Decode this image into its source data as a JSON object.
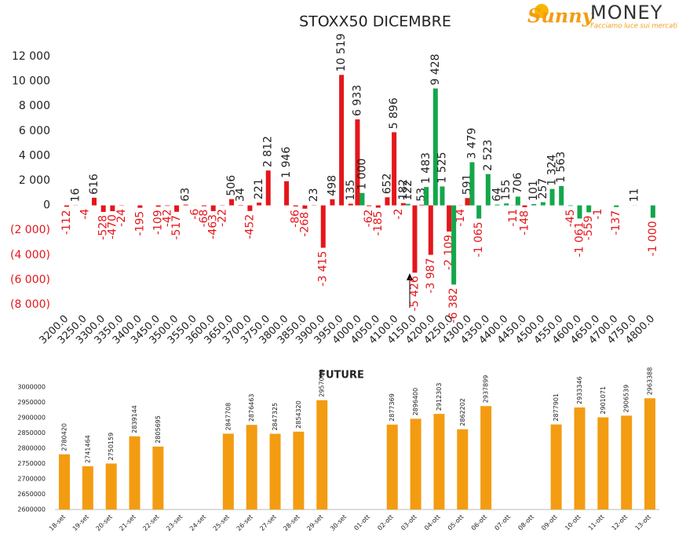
{
  "logo": {
    "brand": "Sunny",
    "brand2": "MONEY",
    "tagline": "Facciamo luce sui mercati"
  },
  "chart_data": [
    {
      "type": "bar",
      "title": "STOXX50 DICEMBRE",
      "categories": [
        "3200.0",
        null,
        "3250.0",
        null,
        "3300.0",
        null,
        "3350.0",
        null,
        "3400.0",
        null,
        "3450.0",
        null,
        "3500.0",
        null,
        "3550.0",
        null,
        "3600.0",
        null,
        "3650.0",
        null,
        "3700.0",
        null,
        "3750.0",
        null,
        "3800.0",
        null,
        "3850.0",
        null,
        "3900.0",
        null,
        "3950.0",
        null,
        "4000.0",
        null,
        "4050.0",
        null,
        "4100.0",
        null,
        "4150.0",
        null,
        "4200.0",
        null,
        "4250.0",
        null,
        "4300.0",
        null,
        "4350.0",
        null,
        "4400.0",
        null,
        "4450.0",
        null,
        "4500.0",
        null,
        "4550.0",
        null,
        "4600.0",
        null,
        "4650.0",
        null,
        "4700.0",
        null,
        "4750.0",
        null,
        "4800.0"
      ],
      "series": [
        {
          "color": "#e4161b",
          "values": [
            -112,
            16,
            -4,
            616,
            -528,
            -470,
            -24,
            null,
            -195,
            null,
            -109,
            -42,
            -517,
            63,
            -6,
            -68,
            -463,
            -22,
            506,
            34,
            -452,
            221,
            2812,
            null,
            1946,
            -86,
            -268,
            23,
            -3415,
            498,
            10519,
            135,
            6933,
            -62,
            -185,
            652,
            5896,
            182,
            -5426,
            53,
            -3987,
            null,
            -2109,
            -14,
            591,
            null,
            null,
            null,
            null,
            -11,
            -148,
            null,
            null,
            null,
            null,
            null,
            null,
            null,
            null,
            null,
            null,
            null,
            null,
            null,
            null
          ],
          "value_labels": [
            "-112",
            "16",
            "-4",
            "616",
            "-528",
            "-470",
            "-24",
            null,
            "-195",
            null,
            "-109",
            "-42",
            "-517",
            "63",
            "-6",
            "-68",
            "-463",
            "-22",
            "506",
            "34",
            "-452",
            "221",
            "2 812",
            null,
            "1 946",
            "-86",
            "-268",
            "23",
            "-3 415",
            "498",
            "10 519",
            "135",
            "6 933",
            "-62",
            "-185",
            "652",
            "5 896",
            "182",
            "-5 426",
            "53",
            "-3 987",
            null,
            "-2 109",
            "-14",
            "591",
            null,
            null,
            null,
            null,
            "-11",
            "-148",
            null,
            null,
            null,
            null,
            null,
            null,
            null,
            null,
            null,
            null,
            null,
            null,
            null,
            null
          ]
        },
        {
          "color": "#14a74b",
          "values": [
            null,
            null,
            null,
            null,
            null,
            null,
            null,
            null,
            null,
            null,
            null,
            null,
            null,
            null,
            null,
            null,
            null,
            null,
            null,
            null,
            null,
            null,
            null,
            null,
            null,
            null,
            null,
            null,
            null,
            null,
            null,
            null,
            1000,
            null,
            null,
            null,
            -2,
            122,
            null,
            1483,
            9428,
            1525,
            -6382,
            null,
            3479,
            -1065,
            2523,
            64,
            155,
            706,
            null,
            101,
            257,
            1324,
            1563,
            -45,
            -1061,
            -559,
            -1,
            null,
            -137,
            null,
            11,
            null,
            -1000
          ],
          "value_labels": [
            null,
            null,
            null,
            null,
            null,
            null,
            null,
            null,
            null,
            null,
            null,
            null,
            null,
            null,
            null,
            null,
            null,
            null,
            null,
            null,
            null,
            null,
            null,
            null,
            null,
            null,
            null,
            null,
            null,
            null,
            null,
            null,
            "1 000",
            null,
            null,
            null,
            "-2",
            "122",
            null,
            "1 483",
            "9 428",
            "1 525",
            "-6 382",
            null,
            "3 479",
            "-1 065",
            "2 523",
            "64",
            "155",
            "706",
            null,
            "101",
            "257",
            "1 324",
            "1 563",
            "-45",
            "-1 061",
            "-559",
            "-1",
            null,
            "-137",
            null,
            "11",
            null,
            "-1 000"
          ]
        }
      ],
      "ylim": [
        -8000,
        12000
      ],
      "yticks": [
        {
          "value": 12000,
          "label": "12 000"
        },
        {
          "value": 10000,
          "label": "10 000"
        },
        {
          "value": 8000,
          "label": "8 000"
        },
        {
          "value": 6000,
          "label": "6 000"
        },
        {
          "value": 4000,
          "label": "4 000"
        },
        {
          "value": 2000,
          "label": "2 000"
        },
        0,
        {
          "value": -2000,
          "label": "(2 000)"
        },
        {
          "value": -4000,
          "label": "(4 000)"
        },
        {
          "value": -6000,
          "label": "(6 000)"
        },
        {
          "value": -8000,
          "label": "(8 000)"
        }
      ],
      "grid": false
    },
    {
      "type": "bar",
      "title": "FUTURE",
      "categories": [
        "18-set",
        "19-set",
        "20-set",
        "21-set",
        "22-set",
        "23-set",
        "24-set",
        "25-set",
        "26-set",
        "27-set",
        "28-set",
        "29-set",
        "30-set",
        "01-ott",
        "02-ott",
        "03-ott",
        "04-ott",
        "05-ott",
        "06-ott",
        "07-ott",
        "08-ott",
        "09-ott",
        "10-ott",
        "11-ott",
        "12-ott",
        "13-ott"
      ],
      "values": [
        2780420,
        2741464,
        2750159,
        2839144,
        2805695,
        null,
        null,
        2847708,
        2876463,
        2847325,
        2854320,
        2957000,
        null,
        null,
        2877369,
        2896400,
        2912303,
        2862202,
        2937899,
        null,
        null,
        2877901,
        2933346,
        2901071,
        2906539,
        2963388
      ],
      "color": "#f39c12",
      "ylim": [
        2600000,
        3000000
      ],
      "yticks": [
        2600000,
        2650000,
        2700000,
        2750000,
        2800000,
        2850000,
        2900000,
        2950000,
        3000000
      ],
      "grid": false
    }
  ]
}
